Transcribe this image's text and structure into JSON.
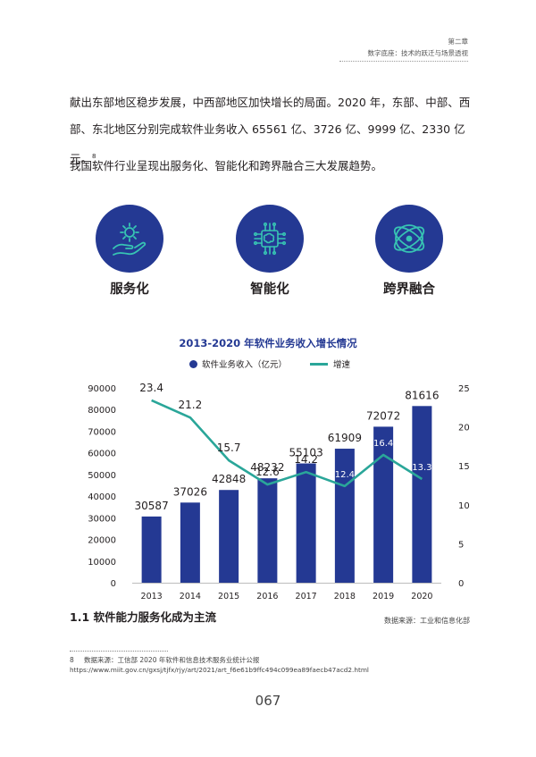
{
  "header": {
    "chapter": "第二章",
    "subtitle": "数字底座：技术的跃迁与场景透视"
  },
  "paragraphs": {
    "p1_text": "献出东部地区稳步发展，中西部地区加快增长的局面。2020 年，东部、中部、西部、东北地区分别完成软件业务收入 65561 亿、3726 亿、9999 亿、2330 亿元。",
    "p1_footnote_mark": "8",
    "p2_text": "我国软件行业呈现出服务化、智能化和跨界融合三大发展趋势。"
  },
  "trends": [
    {
      "label": "服务化",
      "icon": "hand-gear-icon"
    },
    {
      "label": "智能化",
      "icon": "brain-chip-icon"
    },
    {
      "label": "跨界融合",
      "icon": "atom-orbit-icon"
    }
  ],
  "colors": {
    "bar": "#243993",
    "line": "#2aa699",
    "title": "#243993"
  },
  "chart_data": {
    "type": "bar",
    "title": "2013-2020 年软件业务收入增长情况",
    "categories": [
      "2013",
      "2014",
      "2015",
      "2016",
      "2017",
      "2018",
      "2019",
      "2020"
    ],
    "series": [
      {
        "name": "软件业务收入（亿元）",
        "type": "bar",
        "axis": "left",
        "values": [
          30587,
          37026,
          42848,
          48232,
          55103,
          61909,
          72072,
          81616
        ]
      },
      {
        "name": "增速",
        "type": "line",
        "axis": "right",
        "values": [
          23.4,
          21.2,
          15.7,
          12.6,
          14.2,
          12.4,
          16.4,
          13.3
        ]
      }
    ],
    "y_left": {
      "min": 0,
      "max": 90000,
      "ticks": [
        "0",
        "10000",
        "20000",
        "30000",
        "40000",
        "50000",
        "60000",
        "70000",
        "80000",
        "90000"
      ]
    },
    "y_right": {
      "min": 0,
      "max": 25,
      "ticks": [
        "0",
        "5",
        "10",
        "15",
        "20",
        "25"
      ]
    },
    "legend": "top",
    "grid": false
  },
  "section_heading": "1.1 软件能力服务化成为主流",
  "source_note": "数据来源：工业和信息化部",
  "footnote": {
    "number": "8",
    "text": "数据来源：工信部 2020 年软件和信息技术服务业统计公报",
    "url": "https://www.miit.gov.cn/gxsj/tjfx/rjy/art/2021/art_f6e61b9ffc494c099ea89faecb47acd2.html"
  },
  "page_number": "067"
}
